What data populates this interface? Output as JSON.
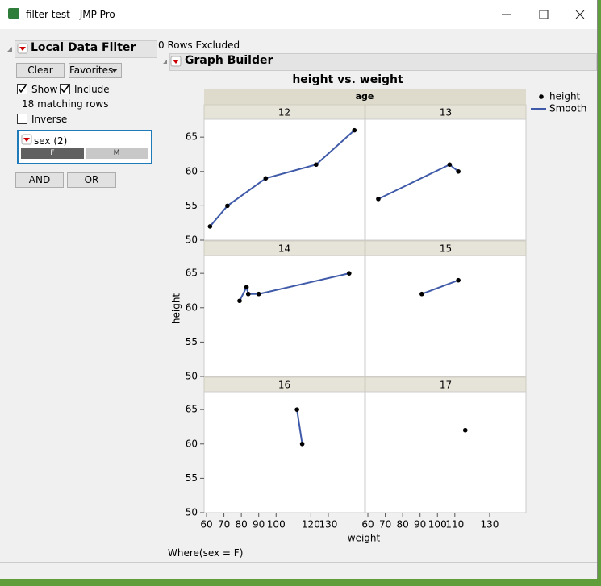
{
  "window": {
    "title": "filter test - JMP Pro"
  },
  "filter": {
    "title": "Local Data Filter",
    "clear": "Clear",
    "favorites": "Favorites",
    "show": "Show",
    "include": "Include",
    "matching": "18 matching rows",
    "inverse": "Inverse",
    "column": "sex (2)",
    "levels": [
      "F",
      "M"
    ],
    "and": "AND",
    "or": "OR"
  },
  "rows_excluded": "0 Rows Excluded",
  "graph_builder": "Graph Builder",
  "where": "Where(sex = F)",
  "chart_data": {
    "type": "scatter",
    "title": "height vs. weight",
    "facet_label": "age",
    "xlabel": "weight",
    "ylabel": "height",
    "xlim": [
      58.6,
      150.9
    ],
    "xticks": [
      [
        60,
        70,
        80,
        90,
        100,
        120,
        130
      ],
      [
        60,
        70,
        80,
        90,
        100,
        110,
        130
      ]
    ],
    "ylim": [
      50,
      67.6
    ],
    "yticks": [
      50,
      55,
      60,
      65
    ],
    "legend": [
      "height",
      "Smooth"
    ],
    "color": "#000000",
    "line_color": "#3f5aa8",
    "panels": [
      {
        "label": "12",
        "x": [
          62,
          72,
          94,
          123,
          145
        ],
        "y": [
          52,
          55,
          59,
          61,
          66
        ]
      },
      {
        "label": "13",
        "x": [
          66,
          107,
          112
        ],
        "y": [
          56,
          61,
          60
        ]
      },
      {
        "label": "14",
        "x": [
          79,
          83,
          84,
          90,
          142
        ],
        "y": [
          61,
          63,
          62,
          62,
          65
        ]
      },
      {
        "label": "15",
        "x": [
          91,
          112
        ],
        "y": [
          62,
          64
        ]
      },
      {
        "label": "16",
        "x": [
          112,
          115
        ],
        "y": [
          65,
          60
        ]
      },
      {
        "label": "17",
        "x": [
          116
        ],
        "y": [
          62
        ]
      }
    ]
  }
}
